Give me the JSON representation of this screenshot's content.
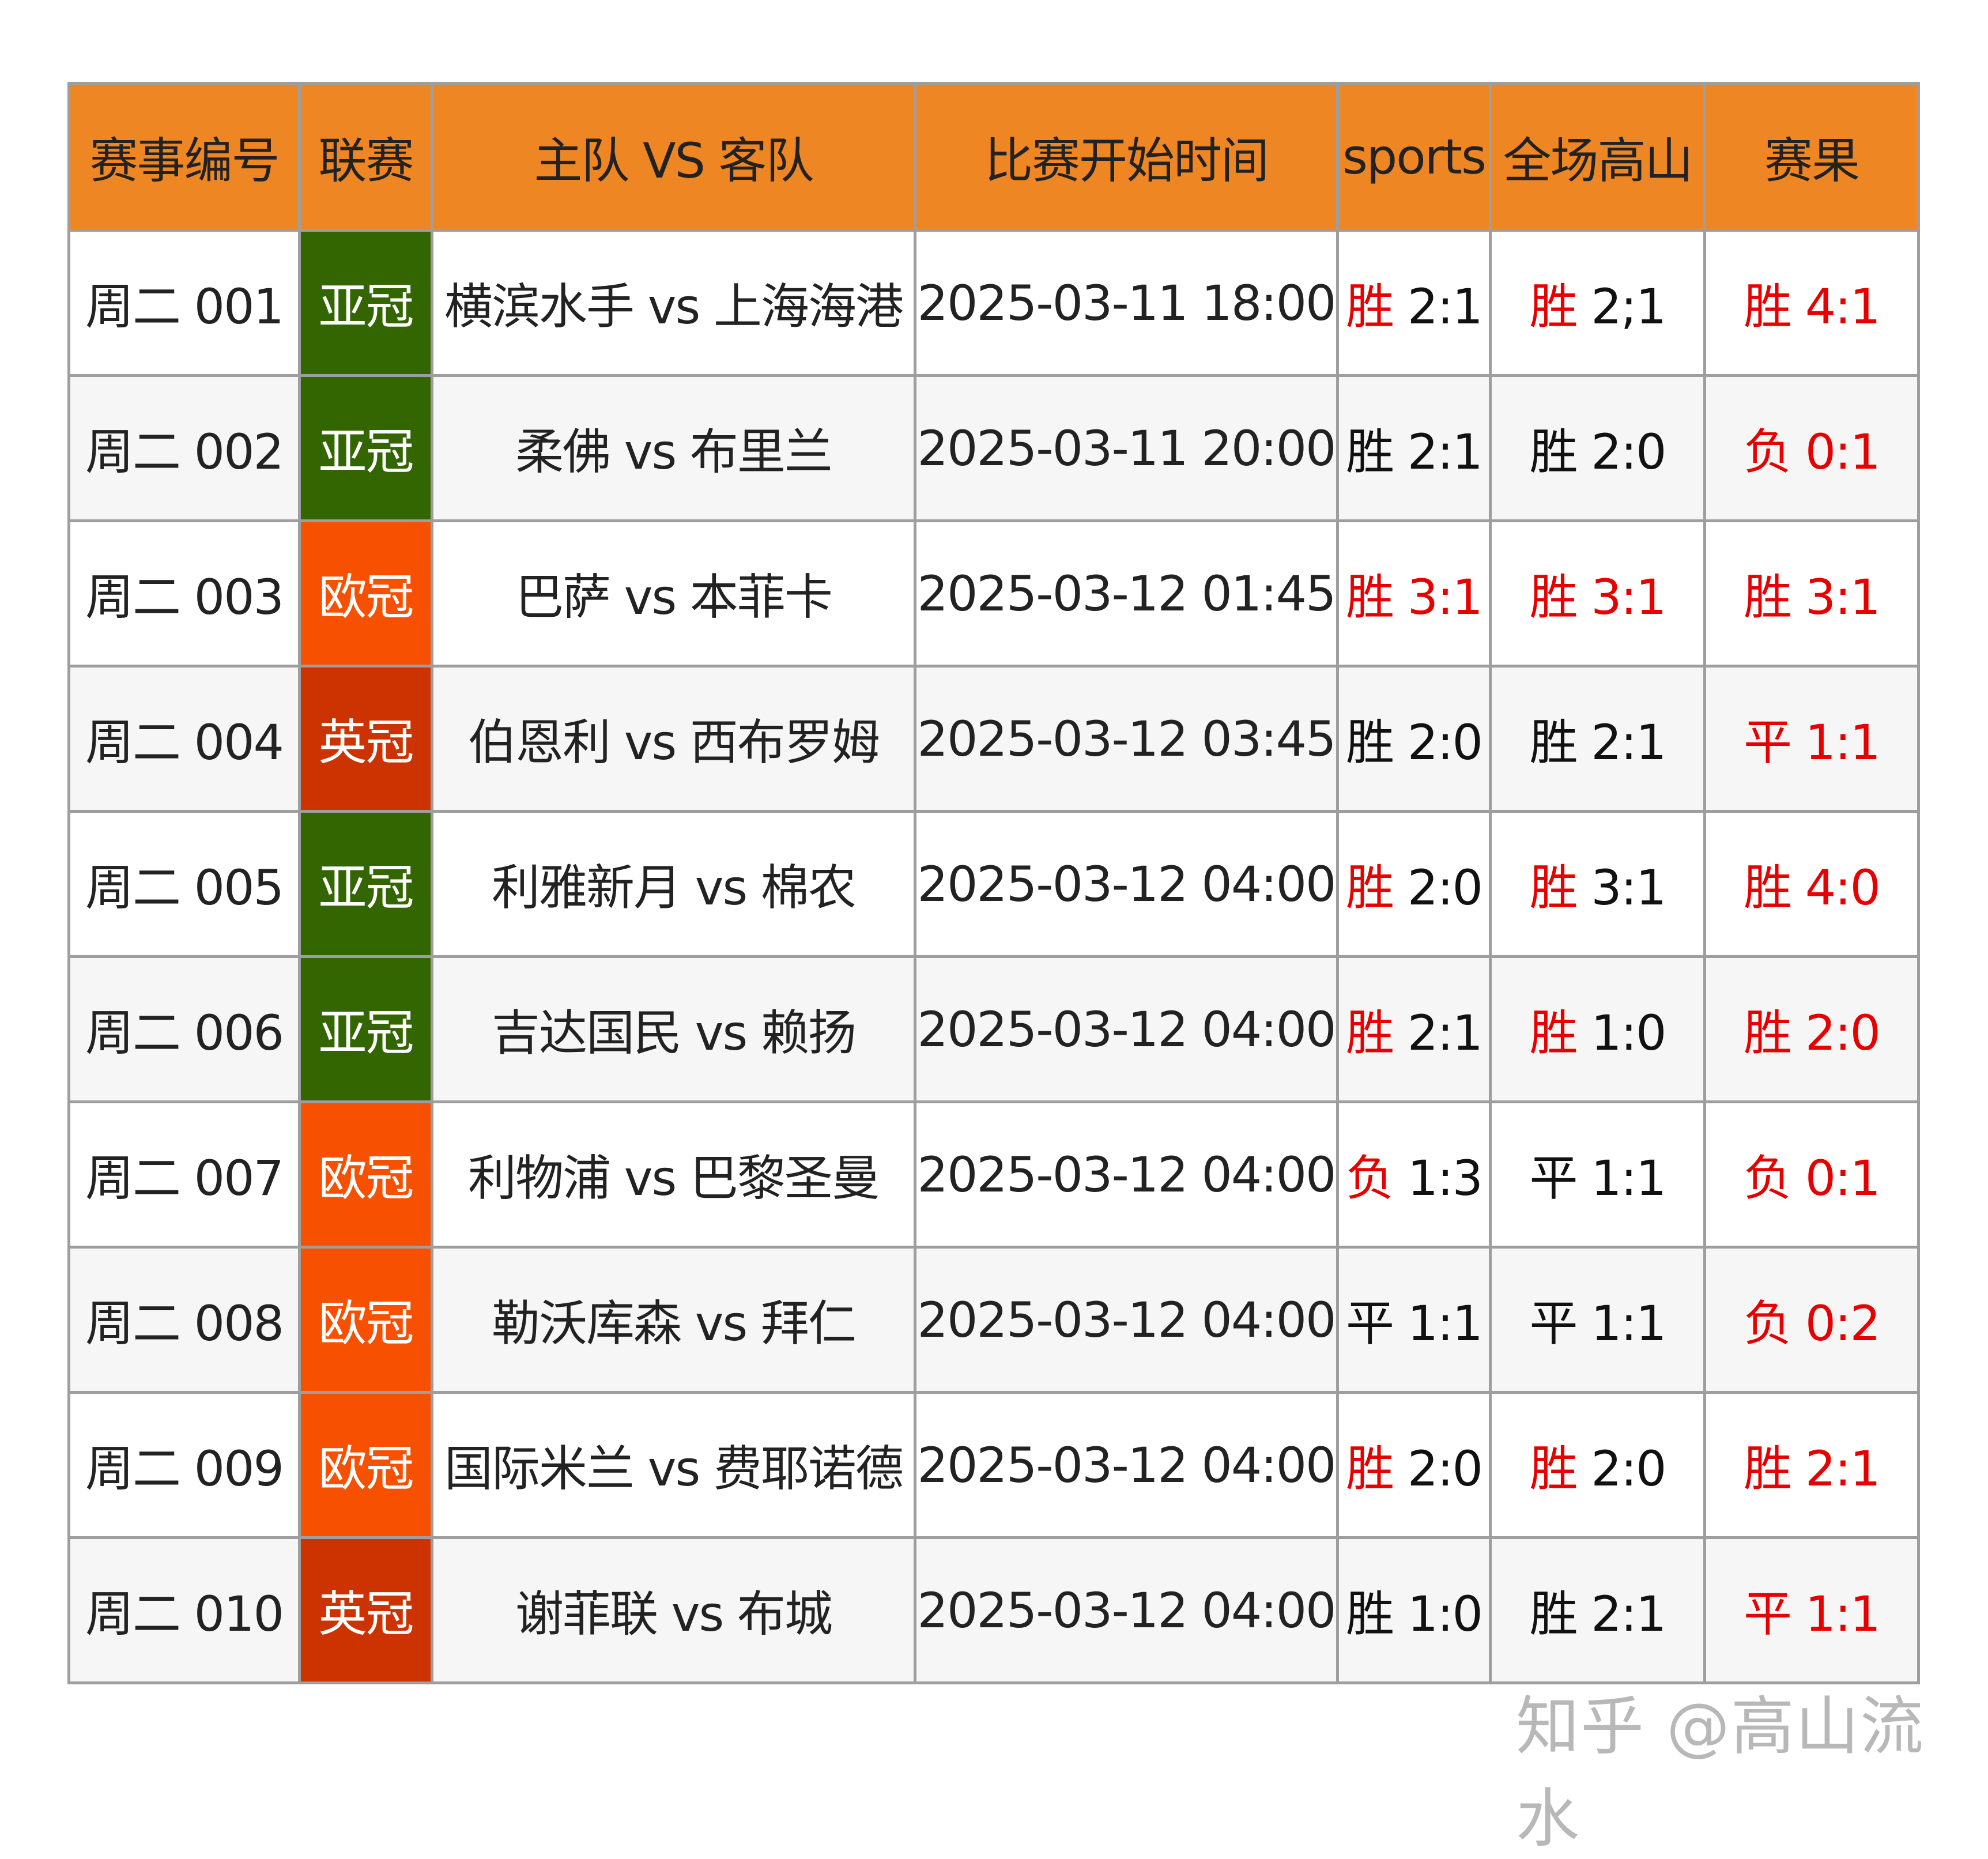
{
  "colors": {
    "header": "#EE8624",
    "亚冠": "#336600",
    "欧冠": "#F75000",
    "英冠": "#CC3300",
    "red": "#e60000",
    "border": "#9e9e9e"
  },
  "headers": [
    "赛事编号",
    "联赛",
    "主队 VS 客队",
    "比赛开始时间",
    "sports",
    "全场高山",
    "赛果"
  ],
  "rows": [
    {
      "id": "周二 001",
      "league": "亚冠",
      "match": "横滨水手 vs 上海海港",
      "time": "2025-03-11 18:00",
      "sports": {
        "r": "胜",
        "s": "2:1",
        "rr": true,
        "sr": false
      },
      "gs": {
        "r": "胜",
        "s": "2;1",
        "rr": true,
        "sr": false
      },
      "res": {
        "r": "胜",
        "s": "4:1",
        "rr": true,
        "sr": true
      }
    },
    {
      "id": "周二 002",
      "league": "亚冠",
      "match": "柔佛 vs 布里兰",
      "time": "2025-03-11 20:00",
      "sports": {
        "r": "胜",
        "s": "2:1",
        "rr": false,
        "sr": false
      },
      "gs": {
        "r": "胜",
        "s": "2:0",
        "rr": false,
        "sr": false
      },
      "res": {
        "r": "负",
        "s": "0:1",
        "rr": true,
        "sr": true
      }
    },
    {
      "id": "周二 003",
      "league": "欧冠",
      "match": "巴萨 vs 本菲卡",
      "time": "2025-03-12 01:45",
      "sports": {
        "r": "胜",
        "s": "3:1",
        "rr": true,
        "sr": true
      },
      "gs": {
        "r": "胜",
        "s": "3:1",
        "rr": true,
        "sr": true
      },
      "res": {
        "r": "胜",
        "s": "3:1",
        "rr": true,
        "sr": true
      }
    },
    {
      "id": "周二 004",
      "league": "英冠",
      "match": "伯恩利 vs 西布罗姆",
      "time": "2025-03-12 03:45",
      "sports": {
        "r": "胜",
        "s": "2:0",
        "rr": false,
        "sr": false
      },
      "gs": {
        "r": "胜",
        "s": "2:1",
        "rr": false,
        "sr": false
      },
      "res": {
        "r": "平",
        "s": "1:1",
        "rr": true,
        "sr": true
      }
    },
    {
      "id": "周二 005",
      "league": "亚冠",
      "match": "利雅新月 vs 棉农",
      "time": "2025-03-12 04:00",
      "sports": {
        "r": "胜",
        "s": "2:0",
        "rr": true,
        "sr": false
      },
      "gs": {
        "r": "胜",
        "s": "3:1",
        "rr": true,
        "sr": false
      },
      "res": {
        "r": "胜",
        "s": "4:0",
        "rr": true,
        "sr": true
      }
    },
    {
      "id": "周二 006",
      "league": "亚冠",
      "match": "吉达国民 vs 赖扬",
      "time": "2025-03-12 04:00",
      "sports": {
        "r": "胜",
        "s": "2:1",
        "rr": true,
        "sr": false
      },
      "gs": {
        "r": "胜",
        "s": "1:0",
        "rr": true,
        "sr": false
      },
      "res": {
        "r": "胜",
        "s": "2:0",
        "rr": true,
        "sr": true
      }
    },
    {
      "id": "周二 007",
      "league": "欧冠",
      "match": "利物浦 vs 巴黎圣曼",
      "time": "2025-03-12 04:00",
      "sports": {
        "r": "负",
        "s": "1:3",
        "rr": true,
        "sr": false
      },
      "gs": {
        "r": "平",
        "s": "1:1",
        "rr": false,
        "sr": false
      },
      "res": {
        "r": "负",
        "s": "0:1",
        "rr": true,
        "sr": true
      }
    },
    {
      "id": "周二 008",
      "league": "欧冠",
      "match": "勒沃库森 vs 拜仁",
      "time": "2025-03-12 04:00",
      "sports": {
        "r": "平",
        "s": "1:1",
        "rr": false,
        "sr": false
      },
      "gs": {
        "r": "平",
        "s": "1:1",
        "rr": false,
        "sr": false
      },
      "res": {
        "r": "负",
        "s": "0:2",
        "rr": true,
        "sr": true
      }
    },
    {
      "id": "周二 009",
      "league": "欧冠",
      "match": "国际米兰 vs 费耶诺德",
      "time": "2025-03-12 04:00",
      "sports": {
        "r": "胜",
        "s": "2:0",
        "rr": true,
        "sr": false
      },
      "gs": {
        "r": "胜",
        "s": "2:0",
        "rr": true,
        "sr": false
      },
      "res": {
        "r": "胜",
        "s": "2:1",
        "rr": true,
        "sr": true
      }
    },
    {
      "id": "周二 010",
      "league": "英冠",
      "match": "谢菲联 vs 布城",
      "time": "2025-03-12 04:00",
      "sports": {
        "r": "胜",
        "s": "1:0",
        "rr": false,
        "sr": false
      },
      "gs": {
        "r": "胜",
        "s": "2:1",
        "rr": false,
        "sr": false
      },
      "res": {
        "r": "平",
        "s": "1:1",
        "rr": true,
        "sr": true
      }
    }
  ],
  "watermark": "知乎 @高山流水"
}
